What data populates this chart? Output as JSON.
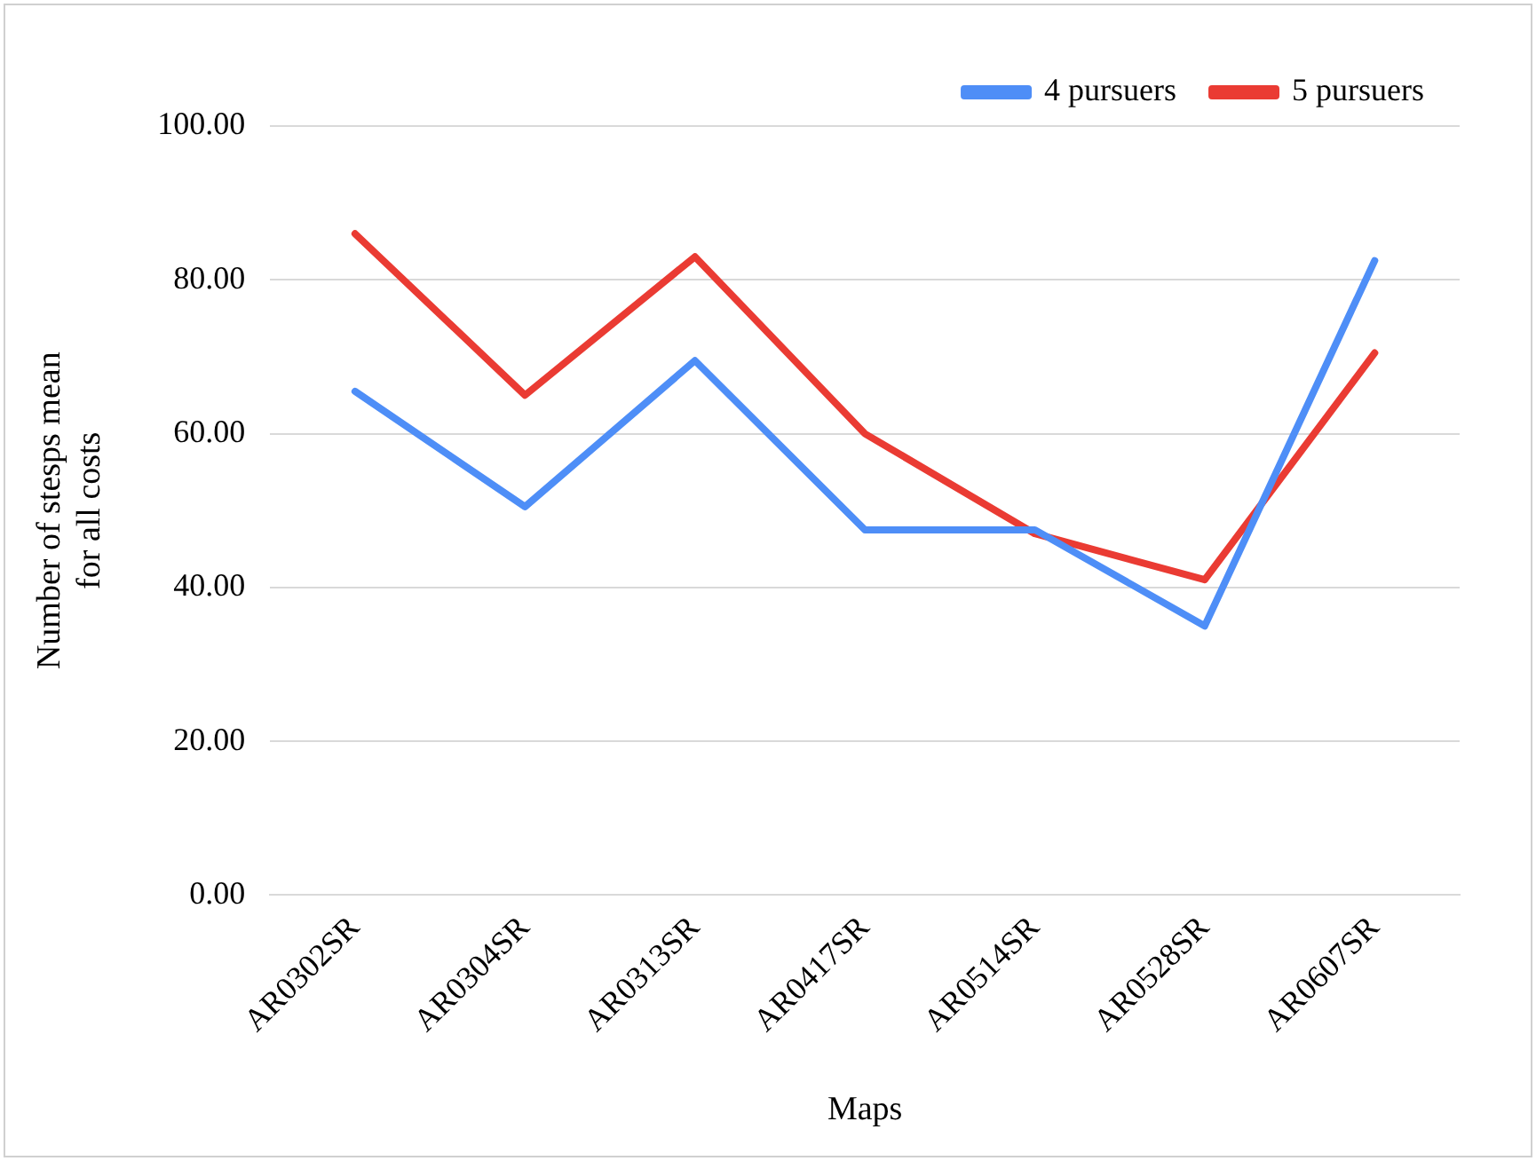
{
  "chart_data": {
    "type": "line",
    "xlabel": "Maps",
    "ylabel": "Number of stesps mean for all costs",
    "categories": [
      "AR0302SR",
      "AR0304SR",
      "AR0313SR",
      "AR0417SR",
      "AR0514SR",
      "AR0528SR",
      "AR0607SR"
    ],
    "series": [
      {
        "name": "4 pursuers",
        "color": "#4e8ef7",
        "values": [
          65.5,
          50.5,
          69.5,
          47.5,
          47.5,
          35,
          82.5
        ]
      },
      {
        "name": "5 pursuers",
        "color": "#ea3b33",
        "values": [
          86,
          65,
          83,
          60,
          47,
          41,
          70.5
        ]
      }
    ],
    "ylim": [
      0,
      100
    ],
    "yticks": [
      {
        "value": 0,
        "label": "0.00"
      },
      {
        "value": 20,
        "label": "20.00"
      },
      {
        "value": 40,
        "label": "40.00"
      },
      {
        "value": 60,
        "label": "60.00"
      },
      {
        "value": 80,
        "label": "80.00"
      },
      {
        "value": 100,
        "label": "100.00"
      }
    ],
    "grid": "y",
    "legend": "top right",
    "marker": "none",
    "line_style": "solid"
  }
}
